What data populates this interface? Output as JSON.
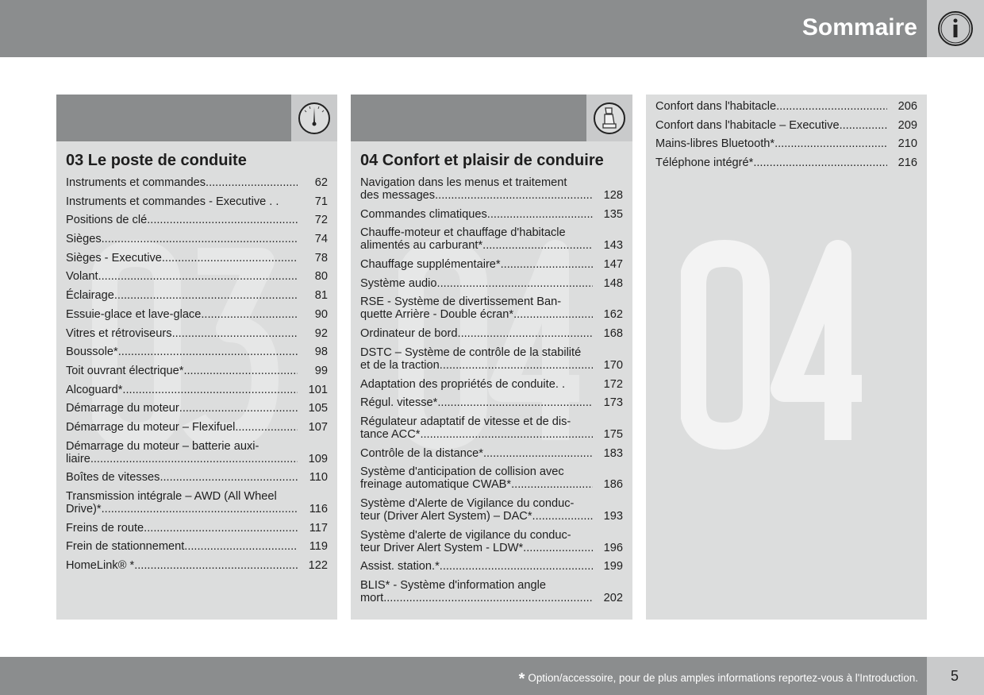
{
  "header": {
    "title": "Sommaire",
    "icon": "info-icon"
  },
  "columns": [
    {
      "title": "03 Le poste de conduite",
      "icon": "gauge-icon",
      "watermark": "03",
      "entries": [
        {
          "line1": "Instruments et commandes",
          "page": "62"
        },
        {
          "line1": "Instruments et commandes - Executive . .",
          "page": "71",
          "nodots": true
        },
        {
          "line1": "Positions de clé",
          "page": "72"
        },
        {
          "line1": "Sièges",
          "page": "74"
        },
        {
          "line1": "Sièges - Executive",
          "page": "78"
        },
        {
          "line1": "Volant",
          "page": "80"
        },
        {
          "line1": "Éclairage",
          "page": "81"
        },
        {
          "line1": "Essuie-glace et lave-glace",
          "page": "90"
        },
        {
          "line1": "Vitres et rétroviseurs",
          "page": "92"
        },
        {
          "line1": "Boussole*",
          "page": "98"
        },
        {
          "line1": "Toit ouvrant électrique*",
          "page": "99"
        },
        {
          "line1": "Alcoguard*",
          "page": "101"
        },
        {
          "line1": "Démarrage du moteur",
          "page": "105"
        },
        {
          "line1": "Démarrage du moteur – Flexifuel",
          "page": "107"
        },
        {
          "line1": "Démarrage du moteur – batterie auxi-",
          "line2": "liaire",
          "page": "109"
        },
        {
          "line1": "Boîtes de vitesses",
          "page": "110"
        },
        {
          "line1": "Transmission intégrale – AWD (All Wheel",
          "line2": "Drive)*",
          "page": "116"
        },
        {
          "line1": "Freins de route",
          "page": "117"
        },
        {
          "line1": "Frein de stationnement",
          "page": "119"
        },
        {
          "line1": "HomeLink® *",
          "page": "122"
        }
      ]
    },
    {
      "title": "04 Confort et plaisir de conduire",
      "icon": "seat-icon",
      "watermark": "04",
      "entries": [
        {
          "line1": "Navigation dans les menus et traitement",
          "line2": "des messages",
          "page": "128"
        },
        {
          "line1": "Commandes climatiques",
          "page": "135"
        },
        {
          "line1": "Chauffe-moteur et chauffage d'habitacle",
          "line2": "alimentés au carburant*",
          "page": "143"
        },
        {
          "line1": "Chauffage supplémentaire*",
          "page": "147"
        },
        {
          "line1": "Système audio",
          "page": "148"
        },
        {
          "line1": "RSE - Système de divertissement Ban-",
          "line2": "quette Arrière - Double écran* ",
          "page": "162"
        },
        {
          "line1": "Ordinateur de bord",
          "page": "168"
        },
        {
          "line1": "DSTC – Système de contrôle de la stabilité",
          "line2": "et de la traction",
          "page": "170"
        },
        {
          "line1": "Adaptation des propriétés de conduite. .",
          "page": "172",
          "nodots": true
        },
        {
          "line1": "Régul. vitesse*",
          "page": "173"
        },
        {
          "line1": "Régulateur adaptatif de vitesse et de dis-",
          "line2": "tance ACC*",
          "page": "175"
        },
        {
          "line1": "Contrôle de la distance*",
          "page": "183"
        },
        {
          "line1": "Système d'anticipation de collision avec",
          "line2": "freinage automatique CWAB*",
          "page": "186"
        },
        {
          "line1": "Système d'Alerte de Vigilance du conduc-",
          "line2": "teur (Driver Alert System) – DAC*",
          "page": "193"
        },
        {
          "line1": "Système d'alerte de vigilance du conduc-",
          "line2": "teur Driver Alert System - LDW*",
          "page": "196"
        },
        {
          "line1": "Assist. station.*",
          "page": "199"
        },
        {
          "line1": "BLIS* - Système d'information angle",
          "line2": "mort",
          "page": "202"
        }
      ]
    },
    {
      "watermark": "04",
      "entries": [
        {
          "line1": "Confort dans l'habitacle",
          "page": "206"
        },
        {
          "line1": "Confort dans l'habitacle – Executive",
          "page": "209"
        },
        {
          "line1": "Mains-libres Bluetooth*",
          "page": "210"
        },
        {
          "line1": "Téléphone intégré*",
          "page": "216"
        }
      ]
    }
  ],
  "footer": {
    "asterisk": "*",
    "note": "Option/accessoire, pour de plus amples informations reportez-vous à l'Introduction.",
    "page_number": "5"
  },
  "colors": {
    "bar": "#8b8d8e",
    "panel": "#dcdddd",
    "icon_box": "#c9cacb"
  }
}
